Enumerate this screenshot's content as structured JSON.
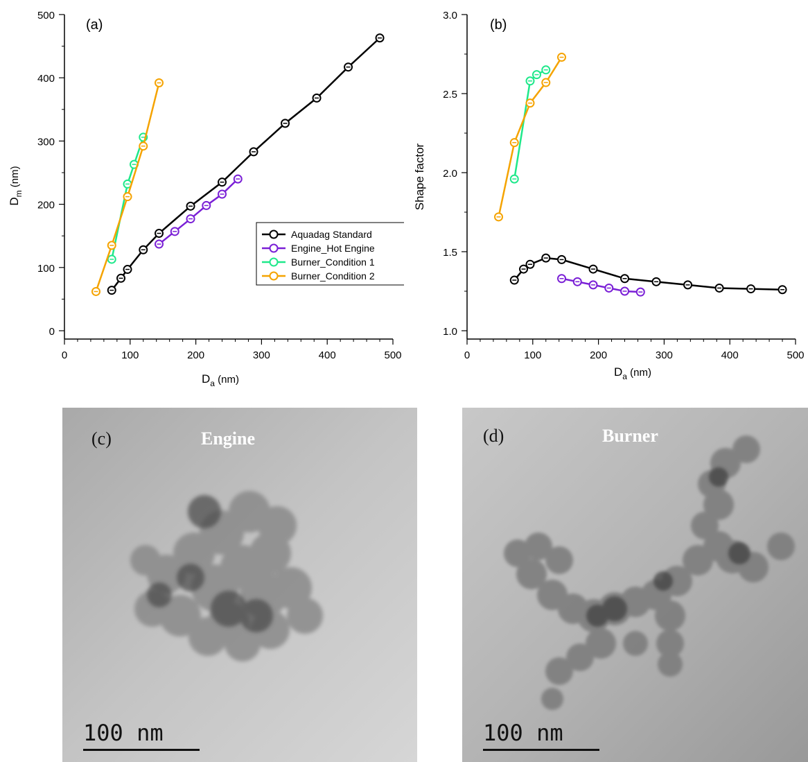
{
  "chart_data": [
    {
      "type": "line",
      "panel_label": "(a)",
      "xlabel_main": "D",
      "xlabel_sub": "a",
      "xlabel_unit": " (nm)",
      "ylabel_main": "D",
      "ylabel_sub": "m",
      "ylabel_unit": " (nm)",
      "xlim": [
        0,
        500
      ],
      "ylim": [
        0,
        500
      ],
      "xticks": [
        "0",
        "100",
        "200",
        "300",
        "400",
        "500"
      ],
      "yticks": [
        "0",
        "100",
        "200",
        "300",
        "400",
        "500"
      ],
      "legend_position": "lower-right",
      "grid": false,
      "series": [
        {
          "name": "Aquadag Standard",
          "color": "#000000",
          "x": [
            72,
            86,
            96,
            120,
            144,
            192,
            240,
            288,
            336,
            384,
            432,
            480
          ],
          "y": [
            64,
            83,
            97,
            128,
            154,
            197,
            235,
            283,
            328,
            368,
            417,
            463
          ]
        },
        {
          "name": "Engine_Hot Engine",
          "color": "#7a1fd6",
          "x": [
            144,
            168,
            192,
            216,
            240,
            264
          ],
          "y": [
            137,
            157,
            177,
            198,
            216,
            240
          ]
        },
        {
          "name": "Burner_Condition 1",
          "color": "#1ee88a",
          "x": [
            72,
            96,
            106,
            120
          ],
          "y": [
            113,
            232,
            263,
            306
          ]
        },
        {
          "name": "Burner_Condition 2",
          "color": "#f5a300",
          "x": [
            48,
            72,
            96,
            120,
            144
          ],
          "y": [
            62,
            135,
            212,
            292,
            392
          ]
        }
      ]
    },
    {
      "type": "line",
      "panel_label": "(b)",
      "xlabel_main": "D",
      "xlabel_sub": "a",
      "xlabel_unit": " (nm)",
      "ylabel": "Shape factor",
      "xlim": [
        0,
        500
      ],
      "ylim": [
        1.0,
        3.0
      ],
      "xticks": [
        "0",
        "100",
        "200",
        "300",
        "400",
        "500"
      ],
      "yticks": [
        "1.0",
        "1.5",
        "2.0",
        "2.5",
        "3.0"
      ],
      "grid": false,
      "series": [
        {
          "color": "#000000",
          "x": [
            72,
            86,
            96,
            120,
            144,
            192,
            240,
            288,
            336,
            384,
            432,
            480
          ],
          "y": [
            1.32,
            1.39,
            1.42,
            1.46,
            1.45,
            1.39,
            1.33,
            1.31,
            1.29,
            1.27,
            1.265,
            1.26
          ]
        },
        {
          "color": "#7a1fd6",
          "x": [
            144,
            168,
            192,
            216,
            240,
            264
          ],
          "y": [
            1.33,
            1.31,
            1.29,
            1.27,
            1.25,
            1.245
          ]
        },
        {
          "color": "#1ee88a",
          "x": [
            72,
            96,
            106,
            120
          ],
          "y": [
            1.96,
            2.58,
            2.62,
            2.65
          ]
        },
        {
          "color": "#f5a300",
          "x": [
            48,
            72,
            96,
            120,
            144
          ],
          "y": [
            1.72,
            2.19,
            2.44,
            2.57,
            2.73
          ]
        }
      ]
    }
  ],
  "images": [
    {
      "label": "(c)",
      "title": "Engine",
      "scale_text": "100 nm"
    },
    {
      "label": "(d)",
      "title": "Burner",
      "scale_text": "100 nm"
    }
  ]
}
